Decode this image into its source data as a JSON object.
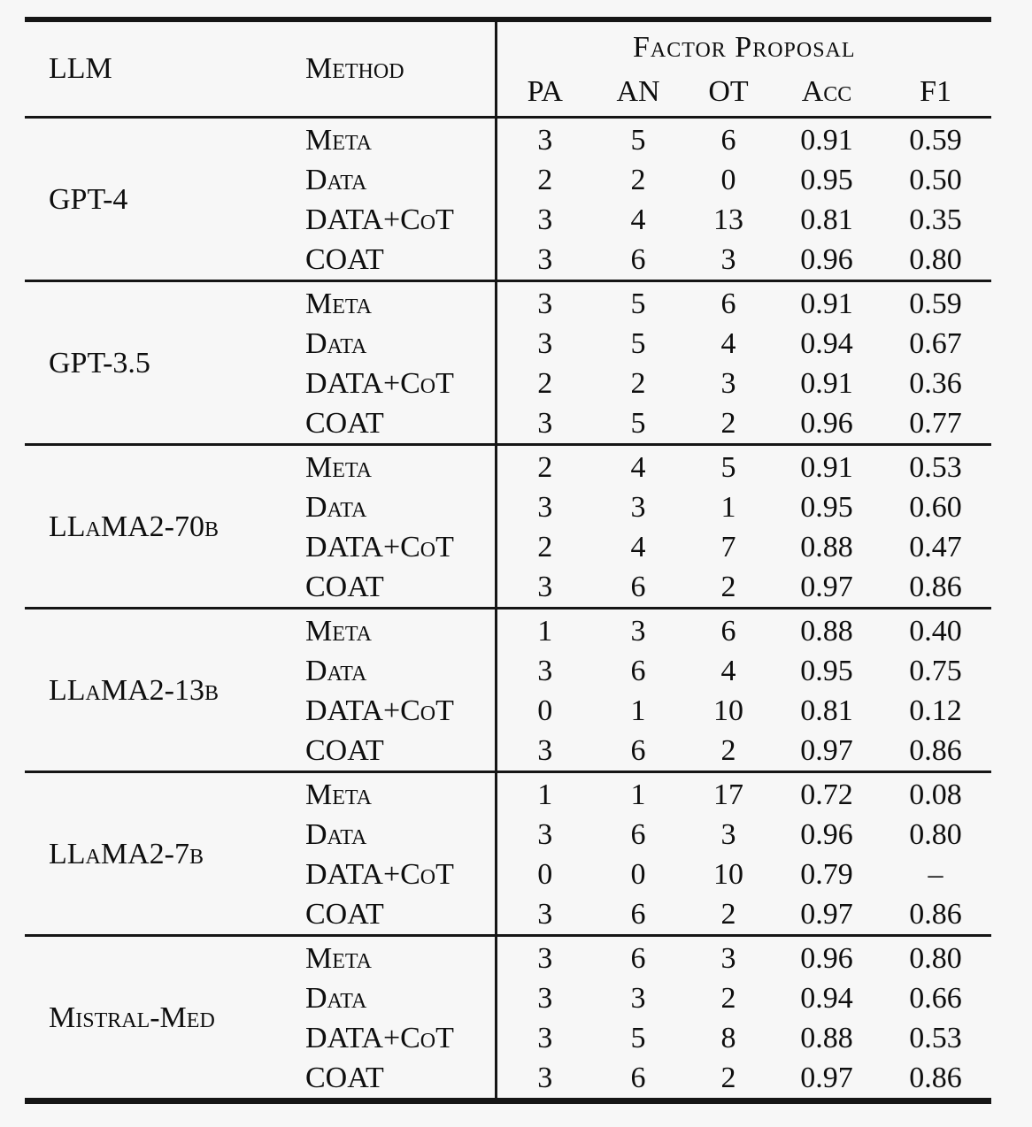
{
  "page": {
    "background": "#f7f7f7",
    "text_color": "#0e0e0e",
    "rule_color": "#161616"
  },
  "table": {
    "header": {
      "llm": "LLM",
      "method": "Method",
      "factor_proposal": "Factor Proposal",
      "subcolumns": [
        "PA",
        "AN",
        "OT",
        "Acc",
        "F1"
      ]
    },
    "groups": [
      {
        "llm": "GPT-4",
        "rows": [
          {
            "method": "Meta",
            "values": [
              "3",
              "5",
              "6",
              "0.91",
              "0.59"
            ]
          },
          {
            "method": "Data",
            "values": [
              "2",
              "2",
              "0",
              "0.95",
              "0.50"
            ]
          },
          {
            "method": "DATA+CoT",
            "values": [
              "3",
              "4",
              "13",
              "0.81",
              "0.35"
            ]
          },
          {
            "method": "COAT",
            "values": [
              "3",
              "6",
              "3",
              "0.96",
              "0.80"
            ]
          }
        ]
      },
      {
        "llm": "GPT-3.5",
        "rows": [
          {
            "method": "Meta",
            "values": [
              "3",
              "5",
              "6",
              "0.91",
              "0.59"
            ]
          },
          {
            "method": "Data",
            "values": [
              "3",
              "5",
              "4",
              "0.94",
              "0.67"
            ]
          },
          {
            "method": "DATA+CoT",
            "values": [
              "2",
              "2",
              "3",
              "0.91",
              "0.36"
            ]
          },
          {
            "method": "COAT",
            "values": [
              "3",
              "5",
              "2",
              "0.96",
              "0.77"
            ]
          }
        ]
      },
      {
        "llm": "LLaMA2-70b",
        "rows": [
          {
            "method": "Meta",
            "values": [
              "2",
              "4",
              "5",
              "0.91",
              "0.53"
            ]
          },
          {
            "method": "Data",
            "values": [
              "3",
              "3",
              "1",
              "0.95",
              "0.60"
            ]
          },
          {
            "method": "DATA+CoT",
            "values": [
              "2",
              "4",
              "7",
              "0.88",
              "0.47"
            ]
          },
          {
            "method": "COAT",
            "values": [
              "3",
              "6",
              "2",
              "0.97",
              "0.86"
            ]
          }
        ]
      },
      {
        "llm": "LLaMA2-13b",
        "rows": [
          {
            "method": "Meta",
            "values": [
              "1",
              "3",
              "6",
              "0.88",
              "0.40"
            ]
          },
          {
            "method": "Data",
            "values": [
              "3",
              "6",
              "4",
              "0.95",
              "0.75"
            ]
          },
          {
            "method": "DATA+CoT",
            "values": [
              "0",
              "1",
              "10",
              "0.81",
              "0.12"
            ]
          },
          {
            "method": "COAT",
            "values": [
              "3",
              "6",
              "2",
              "0.97",
              "0.86"
            ]
          }
        ]
      },
      {
        "llm": "LLaMA2-7b",
        "rows": [
          {
            "method": "Meta",
            "values": [
              "1",
              "1",
              "17",
              "0.72",
              "0.08"
            ]
          },
          {
            "method": "Data",
            "values": [
              "3",
              "6",
              "3",
              "0.96",
              "0.80"
            ]
          },
          {
            "method": "DATA+CoT",
            "values": [
              "0",
              "0",
              "10",
              "0.79",
              "–"
            ]
          },
          {
            "method": "COAT",
            "values": [
              "3",
              "6",
              "2",
              "0.97",
              "0.86"
            ]
          }
        ]
      },
      {
        "llm": "Mistral-Med",
        "rows": [
          {
            "method": "Meta",
            "values": [
              "3",
              "6",
              "3",
              "0.96",
              "0.80"
            ]
          },
          {
            "method": "Data",
            "values": [
              "3",
              "3",
              "2",
              "0.94",
              "0.66"
            ]
          },
          {
            "method": "DATA+CoT",
            "values": [
              "3",
              "5",
              "8",
              "0.88",
              "0.53"
            ]
          },
          {
            "method": "COAT",
            "values": [
              "3",
              "6",
              "2",
              "0.97",
              "0.86"
            ]
          }
        ]
      }
    ]
  }
}
